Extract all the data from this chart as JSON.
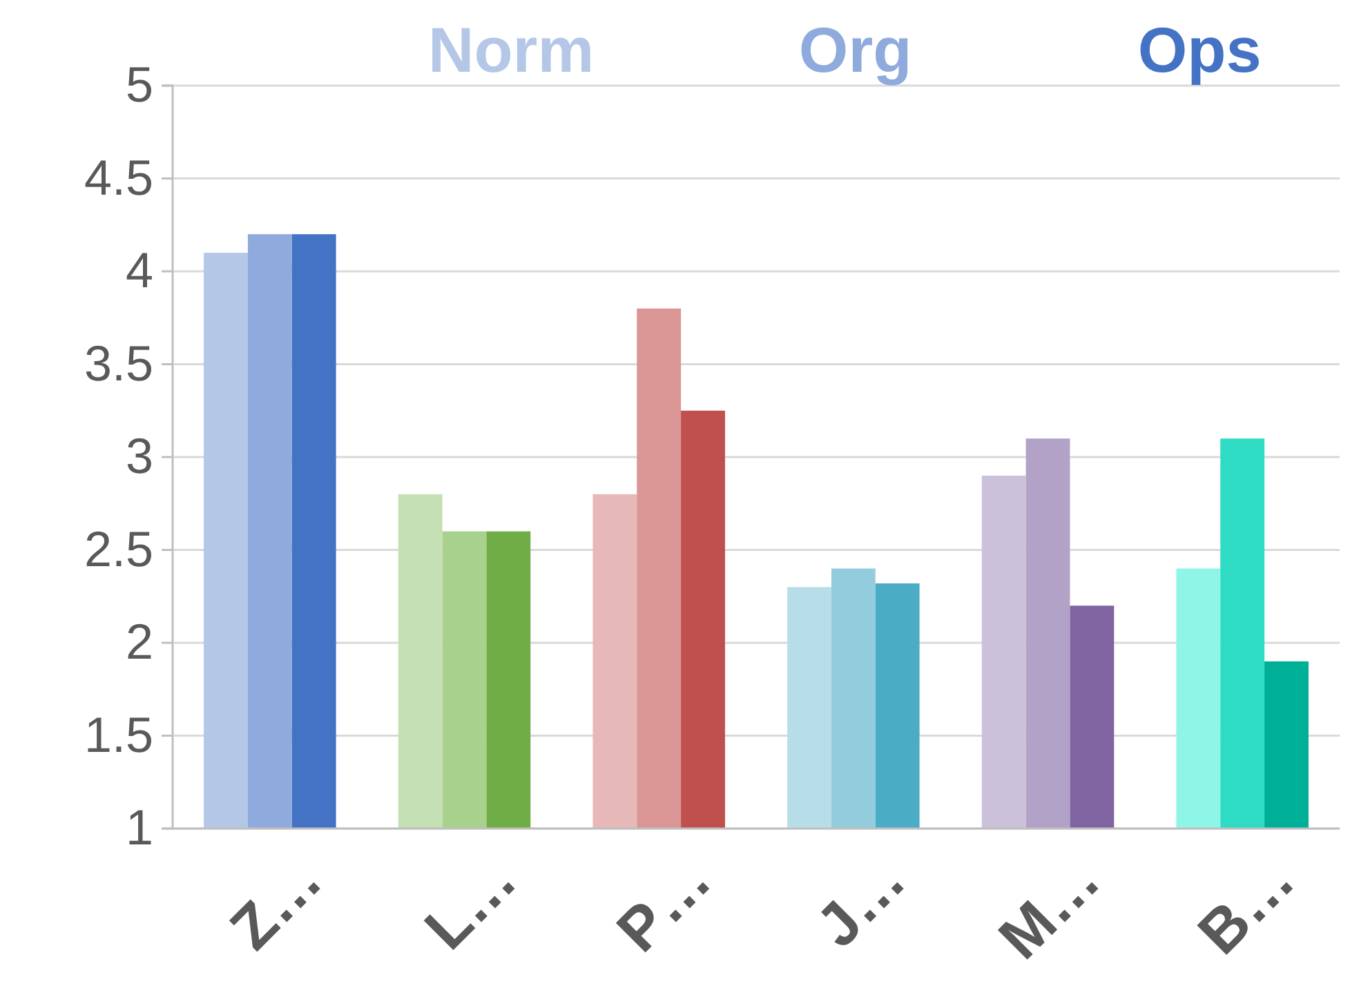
{
  "chart_data": {
    "type": "bar",
    "categories": [
      "Z…",
      "L…",
      "P…",
      "J…",
      "M…",
      "B…"
    ],
    "series": [
      {
        "name": "Norm",
        "color": "#b4c7e7",
        "colors": [
          "#b4c7e7",
          "#c5e0b4",
          "#e6b9b8",
          "#b7dee8",
          "#ccc1da",
          "#8ff5e6"
        ],
        "values": [
          4.1,
          2.8,
          2.8,
          2.3,
          2.9,
          2.4
        ]
      },
      {
        "name": "Org",
        "color": "#8faadc",
        "colors": [
          "#8faadc",
          "#a9d18e",
          "#da9694",
          "#93cddd",
          "#b3a2c7",
          "#2edcc4"
        ],
        "values": [
          4.2,
          2.6,
          3.8,
          2.4,
          3.1,
          3.1
        ]
      },
      {
        "name": "Ops",
        "color": "#4472c4",
        "colors": [
          "#4472c4",
          "#70ad47",
          "#c0504d",
          "#4bacc6",
          "#8064a2",
          "#00b096"
        ],
        "values": [
          4.2,
          2.6,
          3.25,
          2.32,
          2.2,
          1.9
        ]
      }
    ],
    "ylim": [
      1,
      5
    ],
    "yticks": [
      1,
      1.5,
      2,
      2.5,
      3,
      3.5,
      4,
      4.5,
      5
    ],
    "grid": "y",
    "legend": "top"
  }
}
